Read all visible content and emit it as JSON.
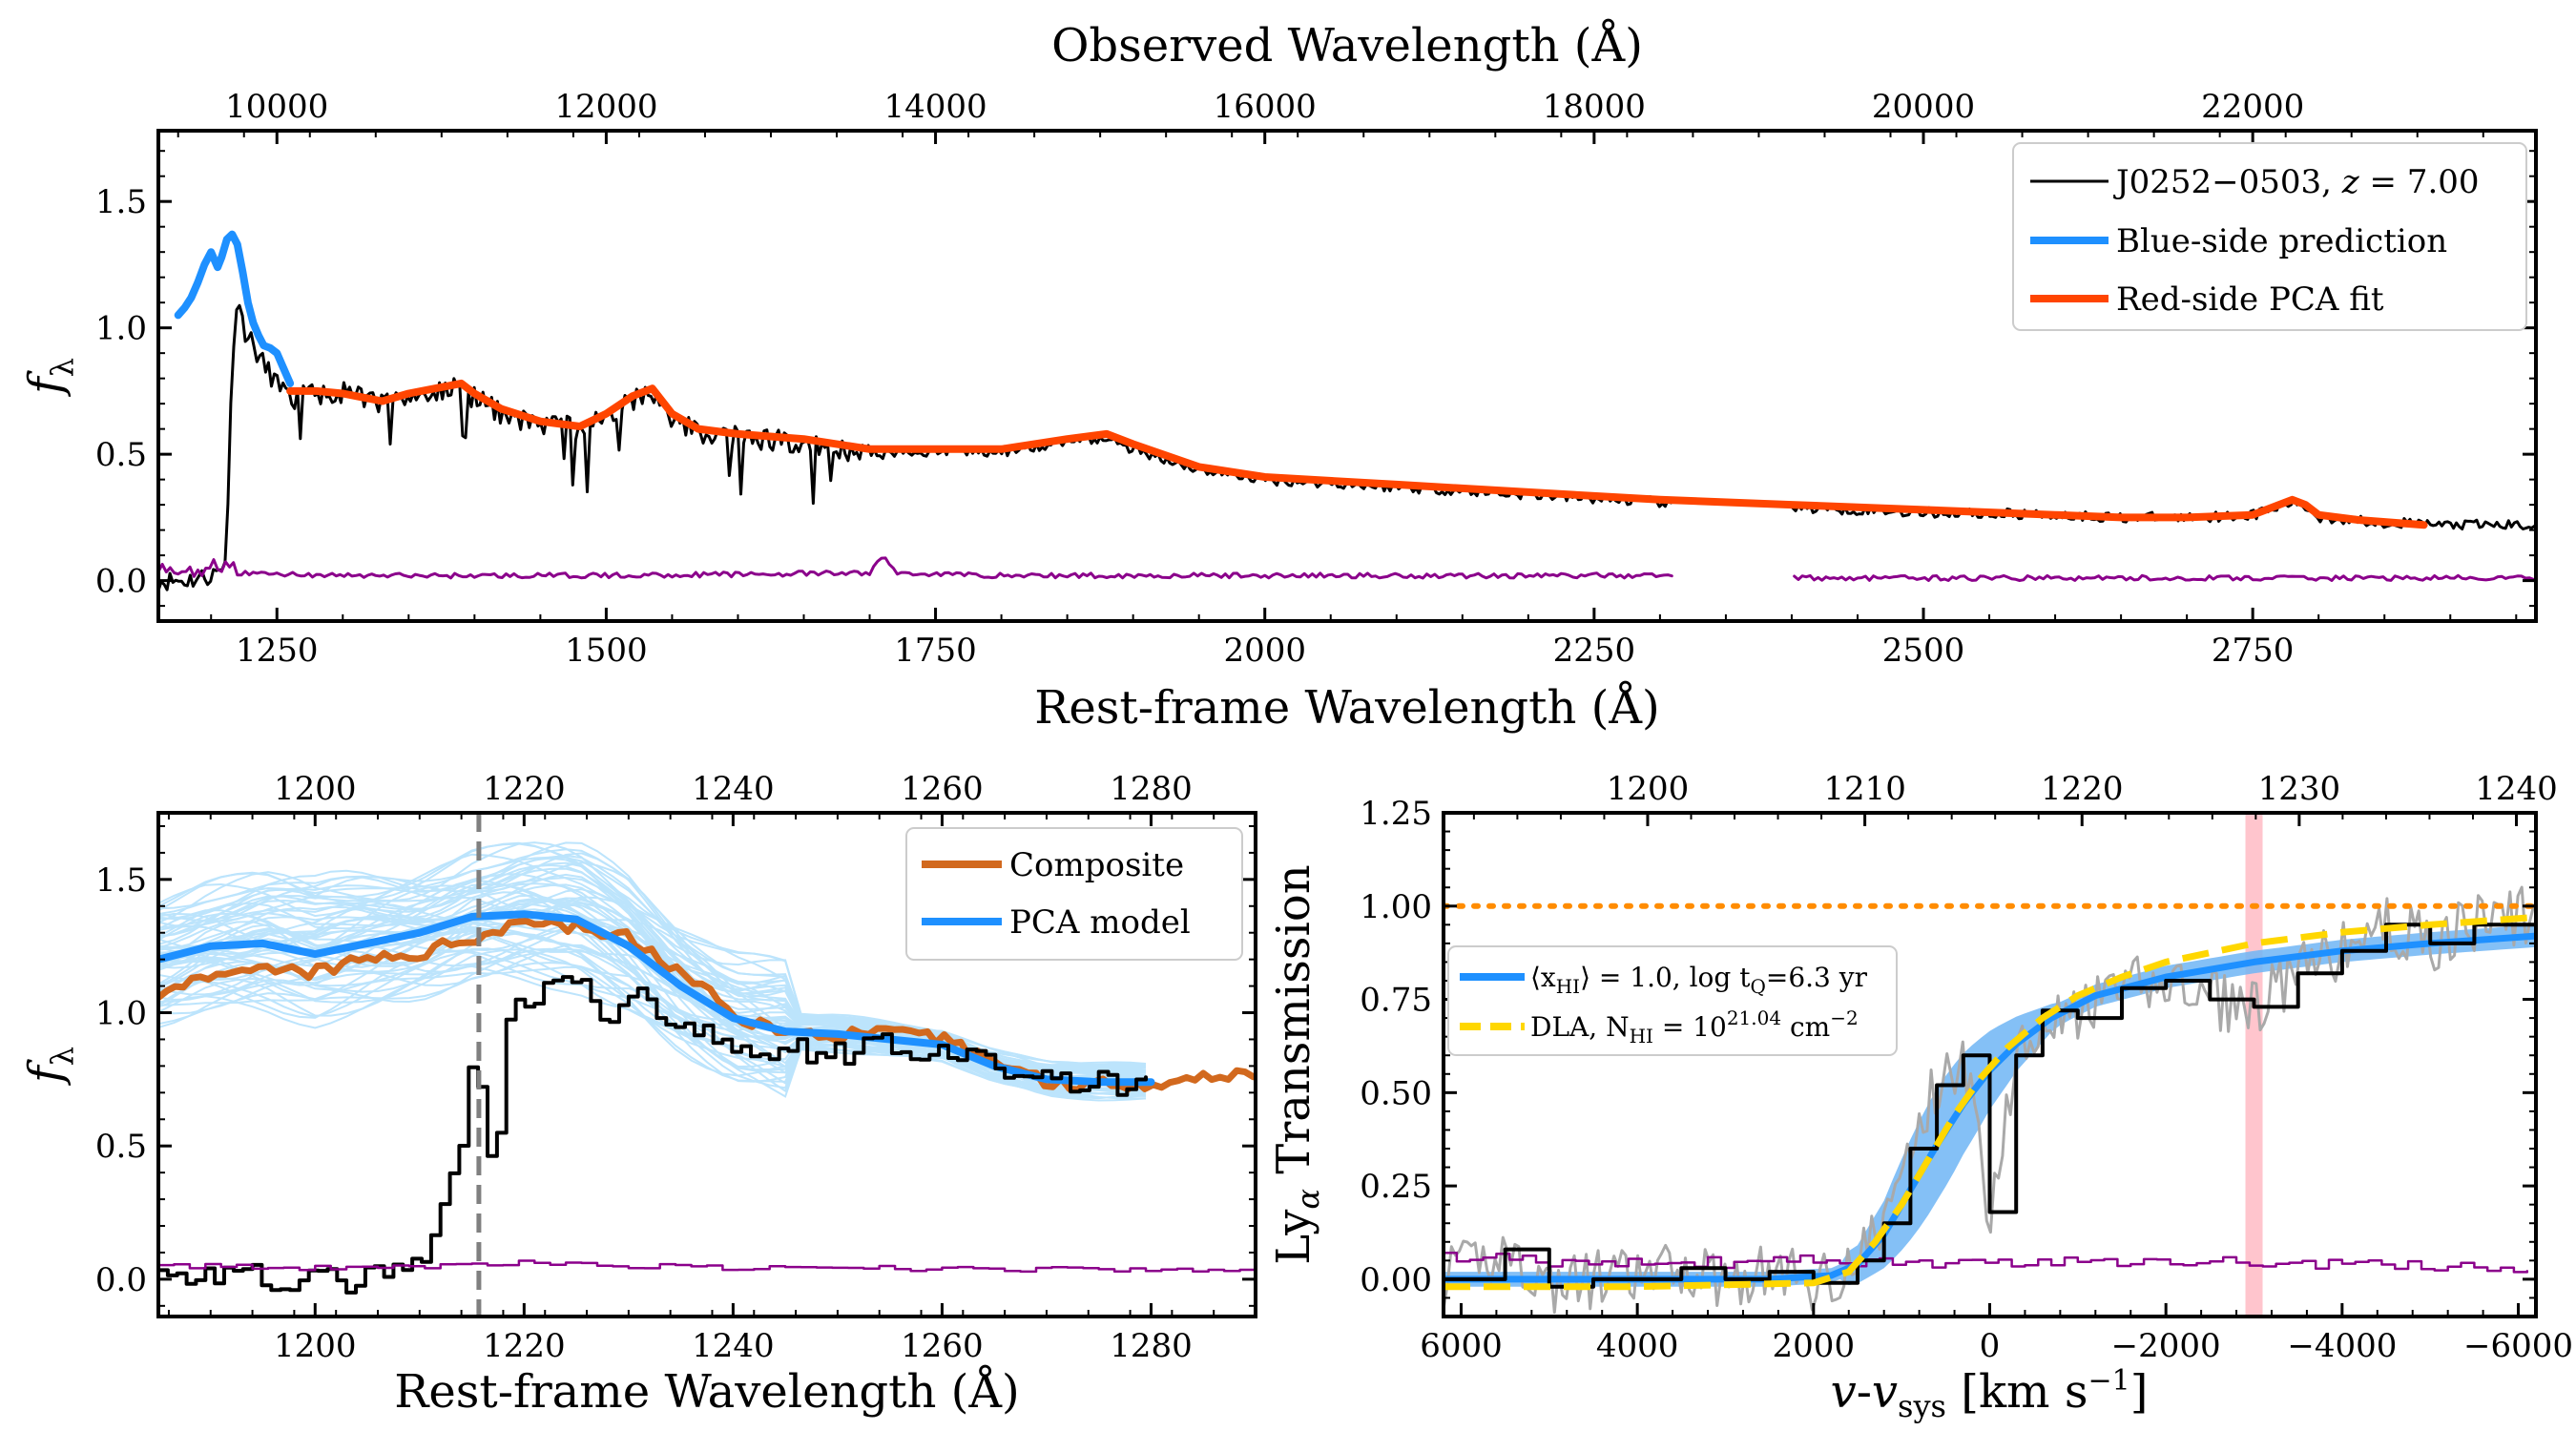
{
  "panels": {
    "top": {
      "top_axis_title": "Observed Wavelength (Å)",
      "bottom_axis_title": "Rest-frame Wavelength (Å)",
      "ylabel": "f",
      "ylabel_sub": "λ"
    },
    "left": {
      "bottom_axis_title": "Rest-frame Wavelength (Å)",
      "ylabel": "f",
      "ylabel_sub": "λ"
    },
    "right": {
      "ylabel": "Ly",
      "ylabel_sub": "α",
      "ylabel_rest": " Transmission",
      "xlabel_v": "v",
      "xlabel_dash": "-",
      "xlabel_vsys": "v",
      "xlabel_sys": "sys",
      "xlabel_unit": " [km s",
      "xlabel_exp": "−1",
      "xlabel_close": "]"
    }
  },
  "colors": {
    "black": "#000000",
    "blue": "#1e90ff",
    "light_blue": "#87cefa",
    "orange_red": "#ff4500",
    "purple": "#8b008b",
    "composite": "#d2691e",
    "yellow": "#ffd700",
    "dotted_orange": "#ff8c00",
    "gray": "#a9a9a9",
    "pink": "#ffb6c1",
    "band_blue": "#6fb5f5"
  },
  "chart_data": [
    {
      "panel": "top",
      "type": "line",
      "xlabel": "Rest-frame Wavelength (Å)",
      "x2label": "Observed Wavelength (Å)",
      "ylabel": "fλ",
      "xlim": [
        1160,
        2965
      ],
      "ylim": [
        -0.16,
        1.78
      ],
      "redshift": 7.0,
      "xticks": [
        1250,
        1500,
        1750,
        2000,
        2250,
        2500,
        2750
      ],
      "x2ticks": [
        10000,
        12000,
        14000,
        16000,
        18000,
        20000,
        22000
      ],
      "yticks": [
        0.0,
        0.5,
        1.0,
        1.5
      ],
      "ytick_labels": [
        "0.0",
        "0.5",
        "1.0",
        "1.5"
      ],
      "legend": {
        "position": "top-right",
        "entries": [
          {
            "name": "J0252−0503, ",
            "math": "z",
            "rest": " = 7.00",
            "color": "#000000"
          },
          {
            "name": "Blue-side prediction",
            "color": "#1e90ff"
          },
          {
            "name": "Red-side PCA fit",
            "color": "#ff4500"
          }
        ]
      },
      "series": [
        {
          "name": "Blue-side prediction",
          "color": "#1e90ff",
          "x": [
            1175,
            1180,
            1185,
            1190,
            1195,
            1200,
            1205,
            1208,
            1212,
            1216,
            1220,
            1224,
            1228,
            1232,
            1236,
            1240,
            1245,
            1250,
            1255,
            1260
          ],
          "y": [
            1.05,
            1.08,
            1.12,
            1.18,
            1.25,
            1.3,
            1.24,
            1.28,
            1.35,
            1.37,
            1.33,
            1.22,
            1.1,
            1.02,
            0.97,
            0.93,
            0.92,
            0.9,
            0.84,
            0.78
          ]
        },
        {
          "name": "Red-side PCA fit",
          "color": "#ff4500",
          "x": [
            1260,
            1280,
            1300,
            1330,
            1350,
            1370,
            1390,
            1400,
            1420,
            1450,
            1480,
            1500,
            1520,
            1535,
            1550,
            1570,
            1600,
            1650,
            1700,
            1750,
            1800,
            1850,
            1880,
            1900,
            1950,
            2000,
            2100,
            2200,
            2300,
            2400,
            2500,
            2600,
            2650,
            2700,
            2750,
            2770,
            2780,
            2790,
            2800,
            2830,
            2880
          ],
          "y": [
            0.75,
            0.75,
            0.74,
            0.71,
            0.74,
            0.76,
            0.78,
            0.74,
            0.68,
            0.63,
            0.61,
            0.66,
            0.73,
            0.76,
            0.66,
            0.6,
            0.58,
            0.56,
            0.52,
            0.52,
            0.52,
            0.56,
            0.58,
            0.54,
            0.45,
            0.41,
            0.38,
            0.35,
            0.32,
            0.3,
            0.28,
            0.26,
            0.25,
            0.25,
            0.26,
            0.3,
            0.32,
            0.3,
            0.26,
            0.24,
            0.22
          ]
        },
        {
          "name": "J0252−0503 spectrum",
          "color": "#000000",
          "gap": [
            2310,
            2400
          ],
          "x": [
            1160,
            1180,
            1200,
            1210,
            1212,
            1214,
            1216,
            1218,
            1220,
            1225,
            1230,
            1240,
            1260,
            1280,
            1300,
            1330,
            1350,
            1370,
            1390,
            1400,
            1420,
            1450,
            1480,
            1500,
            1520,
            1535,
            1550,
            1570,
            1600,
            1650,
            1700,
            1750,
            1800,
            1850,
            1880,
            1900,
            1950,
            2000,
            2100,
            2200,
            2300,
            2310,
            2400,
            2500,
            2600,
            2650,
            2700,
            2750,
            2770,
            2780,
            2790,
            2800,
            2850,
            2900,
            2965
          ],
          "y": [
            0.0,
            0.0,
            0.02,
            0.05,
            0.2,
            0.5,
            0.85,
            1.05,
            1.12,
            1.0,
            0.95,
            0.85,
            0.72,
            0.74,
            0.74,
            0.7,
            0.73,
            0.74,
            0.77,
            0.72,
            0.66,
            0.62,
            0.6,
            0.65,
            0.71,
            0.73,
            0.64,
            0.59,
            0.57,
            0.54,
            0.5,
            0.51,
            0.51,
            0.55,
            0.56,
            0.52,
            0.44,
            0.4,
            0.37,
            0.34,
            0.31,
            0.3,
            0.29,
            0.27,
            0.26,
            0.25,
            0.25,
            0.26,
            0.29,
            0.31,
            0.29,
            0.25,
            0.23,
            0.22,
            0.22
          ]
        },
        {
          "name": "Noise",
          "color": "#8b008b",
          "gap": [
            2310,
            2400
          ],
          "x": [
            1160,
            1200,
            1220,
            1300,
            1500,
            1700,
            1710,
            1720,
            1800,
            2000,
            2200,
            2310,
            2400,
            2600,
            2800,
            2965
          ],
          "y": [
            0.03,
            0.04,
            0.03,
            0.02,
            0.02,
            0.03,
            0.1,
            0.03,
            0.02,
            0.02,
            0.02,
            0.02,
            0.01,
            0.01,
            0.01,
            0.01
          ]
        }
      ]
    },
    {
      "panel": "left",
      "type": "line",
      "xlabel": "Rest-frame Wavelength (Å)",
      "ylabel": "fλ",
      "xlim": [
        1185,
        1290
      ],
      "ylim": [
        -0.14,
        1.75
      ],
      "xticks": [
        1200,
        1220,
        1240,
        1260,
        1280
      ],
      "yticks": [
        0.0,
        0.5,
        1.0,
        1.5
      ],
      "ytick_labels": [
        "0.0",
        "0.5",
        "1.0",
        "1.5"
      ],
      "vline_x": 1215.67,
      "legend": {
        "position": "top-right",
        "entries": [
          {
            "name": "Composite",
            "color": "#d2691e"
          },
          {
            "name": "PCA model",
            "color": "#1e90ff"
          }
        ]
      },
      "series": [
        {
          "name": "PCA model",
          "color": "#1e90ff",
          "x": [
            1185,
            1190,
            1195,
            1200,
            1205,
            1210,
            1215,
            1220,
            1225,
            1230,
            1235,
            1240,
            1245,
            1250,
            1255,
            1260,
            1265,
            1270,
            1275,
            1280
          ],
          "y": [
            1.2,
            1.25,
            1.26,
            1.22,
            1.26,
            1.3,
            1.36,
            1.37,
            1.35,
            1.25,
            1.1,
            0.98,
            0.93,
            0.92,
            0.9,
            0.88,
            0.8,
            0.75,
            0.74,
            0.74
          ]
        },
        {
          "name": "Composite",
          "color": "#d2691e",
          "x": [
            1185,
            1190,
            1195,
            1200,
            1205,
            1210,
            1215,
            1220,
            1225,
            1230,
            1235,
            1240,
            1245,
            1250,
            1255,
            1260,
            1265,
            1270,
            1275,
            1280,
            1285,
            1290
          ],
          "y": [
            1.08,
            1.12,
            1.16,
            1.15,
            1.2,
            1.22,
            1.28,
            1.35,
            1.32,
            1.28,
            1.15,
            1.0,
            0.92,
            0.92,
            0.92,
            0.9,
            0.82,
            0.74,
            0.73,
            0.74,
            0.76,
            0.78
          ]
        },
        {
          "name": "Observed spectrum",
          "color": "#000000",
          "step": true,
          "x": [
            1185,
            1190,
            1195,
            1200,
            1205,
            1210,
            1212,
            1214,
            1215,
            1216,
            1217,
            1218,
            1220,
            1222,
            1224,
            1226,
            1228,
            1230,
            1232,
            1235,
            1240,
            1245,
            1250,
            1255,
            1260,
            1265,
            1270,
            1275,
            1280
          ],
          "y": [
            0.01,
            0.02,
            0.0,
            -0.01,
            0.0,
            0.05,
            0.25,
            0.52,
            0.88,
            0.6,
            0.3,
            0.95,
            1.05,
            1.07,
            1.15,
            1.06,
            1.0,
            1.08,
            1.04,
            0.95,
            0.85,
            0.88,
            0.84,
            0.9,
            0.83,
            0.8,
            0.75,
            0.73,
            0.74
          ]
        },
        {
          "name": "Noise",
          "color": "#8b008b",
          "step": true,
          "x": [
            1185,
            1200,
            1220,
            1240,
            1260,
            1290
          ],
          "y": [
            0.05,
            0.04,
            0.06,
            0.04,
            0.04,
            0.03
          ]
        }
      ]
    },
    {
      "panel": "right",
      "type": "line",
      "xlabel": "v-vsys [km s−1]",
      "ylabel": "Lyα Transmission",
      "xlim": [
        6200,
        -6200
      ],
      "ylim": [
        -0.1,
        1.25
      ],
      "xticks": [
        6000,
        4000,
        2000,
        0,
        -2000,
        -4000,
        -6000
      ],
      "xtick_labels": [
        "6000",
        "4000",
        "2000",
        "0",
        "−2000",
        "−4000",
        "−6000"
      ],
      "x2lim": [
        1190.6,
        1240.9
      ],
      "x2ticks": [
        1200,
        1210,
        1220,
        1230,
        1240
      ],
      "yticks": [
        0.0,
        0.25,
        0.5,
        0.75,
        1.0,
        1.25
      ],
      "ytick_labels": [
        "0.00",
        "0.25",
        "0.50",
        "0.75",
        "1.00",
        "1.25"
      ],
      "hline_y": 1.0,
      "highlight_v": -3000,
      "legend": {
        "position": "center-left",
        "entries": [
          {
            "name": "⟨x",
            "sub": "HI",
            "rest": "⟩ = 1.0, log t",
            "sub2": "Q",
            "rest2": "=6.3 yr",
            "color": "#1e90ff"
          },
          {
            "name": "DLA, N",
            "sub": "HI",
            "rest": " = 10",
            "sup": "21.04",
            "rest2": " cm",
            "sup2": "−2",
            "color": "#ffd700"
          }
        ]
      },
      "series": [
        {
          "name": "Damping-wing model",
          "color": "#1e90ff",
          "x": [
            6200,
            4000,
            2500,
            1800,
            1500,
            1200,
            900,
            600,
            300,
            0,
            -300,
            -700,
            -1200,
            -2000,
            -3000,
            -4000,
            -5000,
            -6200
          ],
          "y": [
            0.0,
            0.0,
            0.0,
            0.01,
            0.04,
            0.12,
            0.24,
            0.36,
            0.47,
            0.56,
            0.63,
            0.7,
            0.76,
            0.81,
            0.85,
            0.88,
            0.9,
            0.92
          ]
        },
        {
          "name": "DLA",
          "color": "#ffd700",
          "x": [
            6200,
            4000,
            2000,
            1600,
            1300,
            1000,
            700,
            400,
            100,
            -200,
            -600,
            -1000,
            -1500,
            -2000,
            -3000,
            -4000,
            -5000,
            -6200
          ],
          "y": [
            -0.02,
            -0.02,
            -0.01,
            0.02,
            0.1,
            0.2,
            0.32,
            0.44,
            0.54,
            0.62,
            0.7,
            0.76,
            0.81,
            0.85,
            0.9,
            0.93,
            0.95,
            0.97
          ]
        },
        {
          "name": "Binned transmission",
          "color": "#000000",
          "step": true,
          "x": [
            6200,
            5500,
            5000,
            4500,
            4000,
            3500,
            3000,
            2500,
            2000,
            1500,
            1200,
            900,
            600,
            300,
            0,
            -300,
            -600,
            -1000,
            -1500,
            -2000,
            -2500,
            -3000,
            -3500,
            -4000,
            -4500,
            -5000,
            -5500,
            -6200
          ],
          "y": [
            0.0,
            0.08,
            -0.02,
            0.0,
            0.0,
            0.03,
            0.0,
            0.02,
            -0.01,
            0.05,
            0.15,
            0.35,
            0.52,
            0.6,
            0.18,
            0.6,
            0.72,
            0.7,
            0.78,
            0.8,
            0.75,
            0.73,
            0.82,
            0.88,
            0.95,
            0.9,
            0.95,
            0.98
          ]
        },
        {
          "name": "Noise",
          "color": "#8b008b",
          "step": true,
          "x": [
            6200,
            4000,
            2000,
            0,
            -2000,
            -4000,
            -6200
          ],
          "y": [
            0.06,
            0.04,
            0.05,
            0.04,
            0.05,
            0.04,
            0.03
          ]
        }
      ]
    }
  ]
}
